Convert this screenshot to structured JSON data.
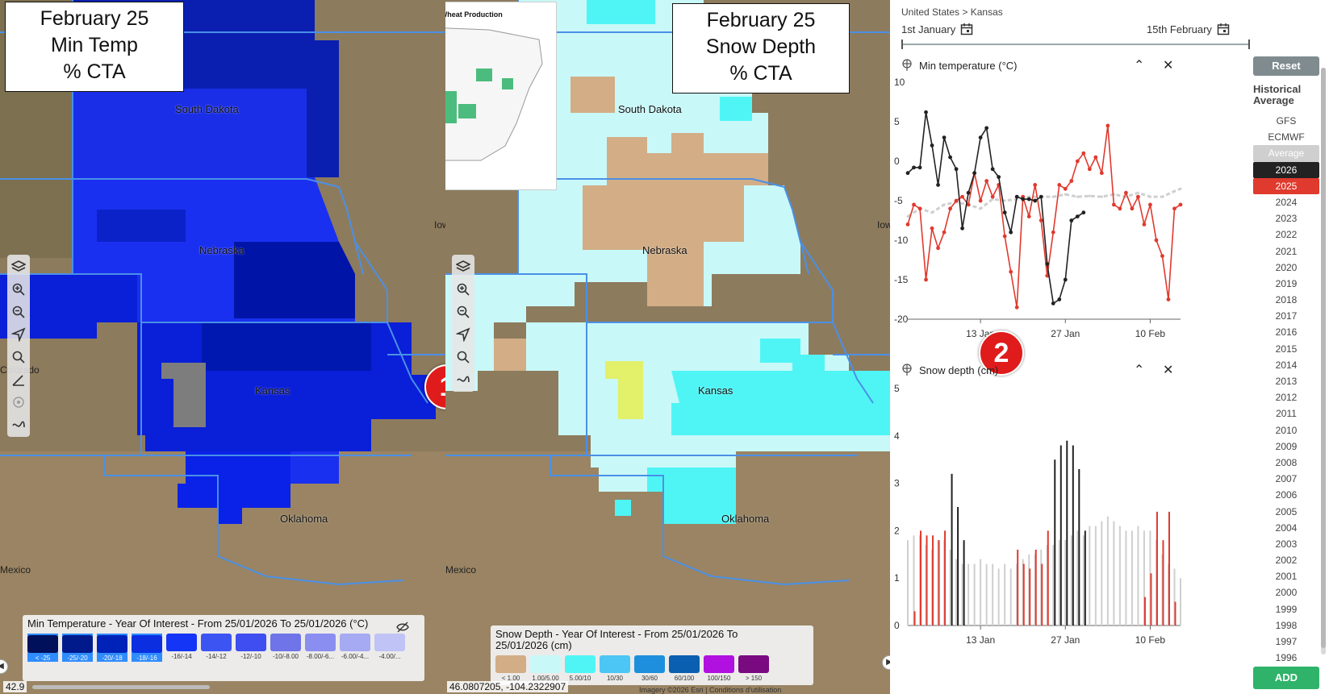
{
  "left_map": {
    "title_line1": "February 25",
    "title_line2": "Min Temp",
    "title_line3": "% CTA",
    "state_labels": {
      "south_dakota": "South Dakota",
      "nebraska": "Nebraska",
      "kansas": "Kansas",
      "oklahoma": "Oklahoma",
      "colorado": "Colorado",
      "mexico": "Mexico",
      "iowa": "Iow"
    },
    "legend_title": "Min Temperature - Year Of Interest - From 25/01/2026 To 25/01/2026 (°C)",
    "legend_items": [
      {
        "label": "< -25",
        "color": "#00105a"
      },
      {
        "label": "-25/-20",
        "color": "#001a8c"
      },
      {
        "label": "-20/-18",
        "color": "#0022b8"
      },
      {
        "label": "-18/-16",
        "color": "#0a2ee0"
      },
      {
        "label": "-16/-14",
        "color": "#1435f5"
      },
      {
        "label": "-14/-12",
        "color": "#3c55f2"
      },
      {
        "label": "-12/-10",
        "color": "#3e4ef0"
      },
      {
        "label": "-10/-8.00",
        "color": "#6f74e8"
      },
      {
        "label": "-8.00/-6...",
        "color": "#8a8ef0"
      },
      {
        "label": "-6.00/-4...",
        "color": "#a6aaf2"
      },
      {
        "label": "-4.00/...",
        "color": "#c0c3f5"
      }
    ],
    "coordinate": "42.9",
    "badge": "1"
  },
  "inset": {
    "title": "United States: Winter Wheat Production"
  },
  "right_map": {
    "title_line1": "February 25",
    "title_line2": "Snow Depth",
    "title_line3": "% CTA",
    "legend_title": "Snow Depth - Year Of Interest - From 25/01/2026 To 25/01/2026 (cm)",
    "legend_items": [
      {
        "label": "< 1.00",
        "color": "#d2ad86"
      },
      {
        "label": "1.00/5.00",
        "color": "#c9f8f8"
      },
      {
        "label": "5.00/10",
        "color": "#4ff5f5"
      },
      {
        "label": "10/30",
        "color": "#4cc6f5"
      },
      {
        "label": "30/60",
        "color": "#1e8fdc"
      },
      {
        "label": "60/100",
        "color": "#0b5fb0"
      },
      {
        "label": "100/150",
        "color": "#b010e0"
      },
      {
        "label": "> 150",
        "color": "#7a0a80"
      }
    ],
    "coordinate": "46.0807205, -104.2322907",
    "attribution": "Imagery ©2026 Esri | Conditions d'utilisation",
    "badge": "2"
  },
  "panel": {
    "breadcrumb": "United States > Kansas",
    "date_start": "1st January",
    "date_end": "15th February",
    "reset": "Reset",
    "historical_title": "Historical Average",
    "add": "ADD",
    "models": [
      {
        "label": "GFS",
        "style": "plain"
      },
      {
        "label": "ECMWF",
        "style": "plain"
      },
      {
        "label": "Average",
        "style": "average"
      },
      {
        "label": "2026",
        "style": "black"
      },
      {
        "label": "2025",
        "style": "red"
      }
    ],
    "years": [
      "2024",
      "2023",
      "2022",
      "2021",
      "2020",
      "2019",
      "2018",
      "2017",
      "2016",
      "2015",
      "2014",
      "2013",
      "2012",
      "2011",
      "2010",
      "2009",
      "2008",
      "2007",
      "2006",
      "2005",
      "2004",
      "2003",
      "2002",
      "2001",
      "2000",
      "1999",
      "1998",
      "1997",
      "1996"
    ],
    "colors": {
      "black": "#222222",
      "red": "#e03a2e",
      "average": "#cfcfcf",
      "green": "#2fb36a"
    }
  },
  "chart_data": [
    {
      "type": "line",
      "title": "Min temperature (°C)",
      "ylim": [
        -20,
        10
      ],
      "yticks": [
        10,
        5,
        0,
        -5,
        -10,
        -15,
        -20
      ],
      "xtick_labels": [
        "13 Jan",
        "27 Jan",
        "10 Feb"
      ],
      "xtick_days": [
        13,
        27,
        41
      ],
      "xlim": [
        1,
        46
      ],
      "series": [
        {
          "name": "2026",
          "color": "#222222",
          "style": "solid",
          "x": [
            1,
            2,
            3,
            4,
            5,
            6,
            7,
            8,
            9,
            10,
            11,
            12,
            13,
            14,
            15,
            16,
            17,
            18,
            19,
            20,
            21,
            22,
            23,
            24,
            25,
            26,
            27,
            28,
            29,
            30
          ],
          "y": [
            -1.5,
            -0.8,
            -0.8,
            6.2,
            2,
            -3,
            3,
            0.5,
            -1,
            -8.5,
            -4,
            -1.5,
            3,
            4.2,
            -1,
            -2,
            -6.5,
            -9,
            -4.5,
            -4.8,
            -4.8,
            -5,
            -4.5,
            -13,
            -18,
            -17.5,
            -15,
            -7.5,
            -7,
            -6.5
          ]
        },
        {
          "name": "2025",
          "color": "#e03a2e",
          "style": "solid",
          "x": [
            1,
            2,
            3,
            4,
            5,
            6,
            7,
            8,
            9,
            10,
            11,
            12,
            13,
            14,
            15,
            16,
            17,
            18,
            19,
            20,
            21,
            22,
            23,
            24,
            25,
            26,
            27,
            28,
            29,
            30,
            31,
            32,
            33,
            34,
            35,
            36,
            37,
            38,
            39,
            40,
            41,
            42,
            43,
            44,
            45,
            46
          ],
          "y": [
            -8,
            -5.5,
            -6,
            -15,
            -8.5,
            -11,
            -9,
            -6,
            -5,
            -4.5,
            -5.5,
            -1.5,
            -5,
            -2.5,
            -4.5,
            -3,
            -9.5,
            -14,
            -18.5,
            -4.5,
            -7,
            -3,
            -7.5,
            -14.5,
            -9,
            -3,
            -3.5,
            -2.5,
            0,
            1,
            -1,
            0.5,
            -1.5,
            4.5,
            -5.5,
            -6,
            -4,
            -6,
            -4.5,
            -8,
            -5.5,
            -10,
            -12,
            -17.5,
            -6,
            -5.5
          ]
        },
        {
          "name": "Average",
          "color": "#cfcfcf",
          "style": "dashed",
          "x": [
            1,
            3,
            5,
            7,
            9,
            11,
            13,
            15,
            17,
            19,
            21,
            23,
            25,
            27,
            29,
            31,
            33,
            35,
            37,
            39,
            41,
            43,
            45,
            46
          ],
          "y": [
            -7,
            -6,
            -6.5,
            -5.5,
            -5.2,
            -5.5,
            -6,
            -4.8,
            -5,
            -4.8,
            -4.5,
            -4.5,
            -4.5,
            -4.2,
            -4.5,
            -4.4,
            -4.5,
            -4.2,
            -4.5,
            -4,
            -4.5,
            -4.5,
            -3.8,
            -3.5
          ]
        }
      ]
    },
    {
      "type": "bar",
      "title": "Snow depth (cm)",
      "ylim": [
        0,
        5
      ],
      "yticks": [
        5,
        4,
        3,
        2,
        1,
        0
      ],
      "xtick_labels": [
        "13 Jan",
        "27 Jan",
        "10 Feb"
      ],
      "xtick_days": [
        13,
        27,
        41
      ],
      "xlim": [
        1,
        46
      ],
      "series": [
        {
          "name": "Average",
          "color": "#cfcfcf",
          "x": [
            1,
            2,
            3,
            4,
            5,
            6,
            7,
            8,
            9,
            10,
            11,
            12,
            13,
            14,
            15,
            16,
            17,
            18,
            19,
            20,
            21,
            22,
            23,
            24,
            25,
            26,
            27,
            28,
            29,
            30,
            31,
            32,
            33,
            34,
            35,
            36,
            37,
            38,
            39,
            40,
            41,
            42,
            43,
            44,
            45,
            46
          ],
          "y": [
            1.8,
            1.9,
            1.9,
            1.7,
            1.6,
            1.8,
            1.8,
            1.6,
            1.4,
            1.3,
            1.3,
            1.3,
            1.4,
            1.3,
            1.3,
            1.2,
            1.3,
            1.2,
            1.3,
            1.4,
            1.5,
            1.5,
            1.6,
            1.7,
            1.7,
            1.8,
            1.8,
            1.9,
            2,
            1.9,
            2.1,
            2.1,
            2.2,
            2.3,
            2.2,
            2.1,
            2,
            2,
            2.1,
            2,
            2,
            1.8,
            1.5,
            1.3,
            1.2,
            1
          ]
        },
        {
          "name": "2026",
          "color": "#222222",
          "x": [
            8,
            9,
            10,
            25,
            26,
            27,
            28,
            29,
            30
          ],
          "y": [
            3.2,
            2.5,
            1.8,
            3.5,
            3.8,
            3.9,
            3.8,
            3.3,
            2
          ]
        },
        {
          "name": "2025",
          "color": "#e03a2e",
          "x": [
            2,
            3,
            4,
            5,
            6,
            7,
            19,
            20,
            21,
            22,
            23,
            24,
            40,
            41,
            42,
            43,
            44,
            45
          ],
          "y": [
            0.3,
            2,
            1.9,
            1.9,
            1.8,
            2,
            1.6,
            1.3,
            1.2,
            1.6,
            1.3,
            2,
            0.6,
            1.1,
            2.4,
            1.8,
            2.4,
            0.5
          ]
        }
      ]
    }
  ]
}
